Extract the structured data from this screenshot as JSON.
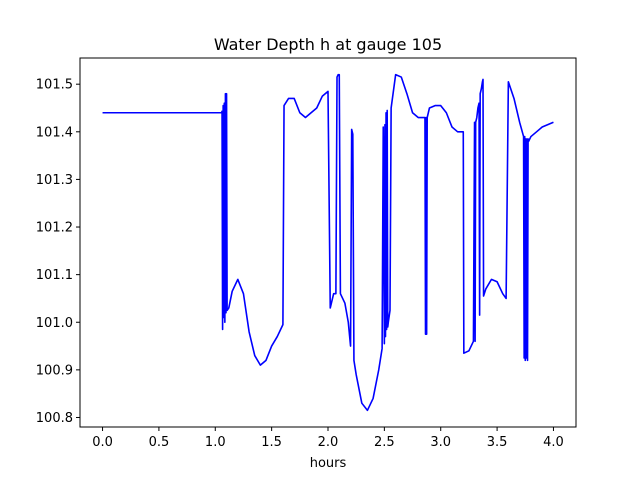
{
  "chart_data": {
    "type": "line",
    "title": "Water Depth h at gauge 105",
    "xlabel": "hours",
    "ylabel": "",
    "xlim": [
      -0.2,
      4.2
    ],
    "ylim": [
      100.78,
      101.555
    ],
    "x_ticks": [
      0.0,
      0.5,
      1.0,
      1.5,
      2.0,
      2.5,
      3.0,
      3.5,
      4.0
    ],
    "x_tick_labels": [
      "0.0",
      "0.5",
      "1.0",
      "1.5",
      "2.0",
      "2.5",
      "3.0",
      "3.5",
      "4.0"
    ],
    "y_ticks": [
      100.8,
      100.9,
      101.0,
      101.1,
      101.2,
      101.3,
      101.4,
      101.5
    ],
    "y_tick_labels": [
      "100.8",
      "100.9",
      "101.0",
      "101.1",
      "101.2",
      "101.3",
      "101.4",
      "101.5"
    ],
    "grid": false,
    "series": [
      {
        "color": "#0000ff",
        "x": [
          0.0,
          1.05,
          1.055,
          1.06,
          1.065,
          1.07,
          1.075,
          1.08,
          1.085,
          1.09,
          1.095,
          1.1,
          1.105,
          1.12,
          1.15,
          1.2,
          1.25,
          1.3,
          1.35,
          1.4,
          1.45,
          1.5,
          1.55,
          1.6,
          1.61,
          1.65,
          1.7,
          1.75,
          1.8,
          1.9,
          1.95,
          2.0,
          2.02,
          2.03,
          2.05,
          2.07,
          2.08,
          2.09,
          2.1,
          2.11,
          2.12,
          2.15,
          2.18,
          2.2,
          2.21,
          2.22,
          2.23,
          2.25,
          2.3,
          2.35,
          2.4,
          2.45,
          2.48,
          2.49,
          2.5,
          2.505,
          2.51,
          2.515,
          2.52,
          2.525,
          2.53,
          2.535,
          2.55,
          2.56,
          2.6,
          2.65,
          2.7,
          2.75,
          2.8,
          2.86,
          2.865,
          2.87,
          2.875,
          2.88,
          2.9,
          2.95,
          3.0,
          3.05,
          3.1,
          3.15,
          3.2,
          3.205,
          3.25,
          3.28,
          3.29,
          3.3,
          3.305,
          3.31,
          3.32,
          3.33,
          3.34,
          3.345,
          3.35,
          3.36,
          3.37,
          3.375,
          3.38,
          3.4,
          3.45,
          3.5,
          3.55,
          3.58,
          3.6,
          3.65,
          3.7,
          3.735,
          3.74,
          3.745,
          3.75,
          3.755,
          3.76,
          3.765,
          3.77,
          3.775,
          3.78,
          3.8,
          3.85,
          3.9,
          3.95,
          4.0
        ],
        "y": [
          101.44,
          101.44,
          101.44,
          101.443,
          100.985,
          101.455,
          101.01,
          101.46,
          101.0,
          101.48,
          101.02,
          101.48,
          101.025,
          101.03,
          101.065,
          101.09,
          101.06,
          100.98,
          100.93,
          100.91,
          100.92,
          100.95,
          100.97,
          100.995,
          101.455,
          101.47,
          101.47,
          101.44,
          101.43,
          101.45,
          101.475,
          101.485,
          101.03,
          101.04,
          101.06,
          101.06,
          101.515,
          101.52,
          101.52,
          101.06,
          101.055,
          101.04,
          101.0,
          100.95,
          101.405,
          101.395,
          100.92,
          100.89,
          100.83,
          100.815,
          100.84,
          100.9,
          100.945,
          101.41,
          100.955,
          101.415,
          100.97,
          101.44,
          100.985,
          101.445,
          100.99,
          101.0,
          101.025,
          101.45,
          101.52,
          101.515,
          101.48,
          101.44,
          101.43,
          101.43,
          100.975,
          101.43,
          100.975,
          101.43,
          101.45,
          101.455,
          101.455,
          101.44,
          101.41,
          101.4,
          101.4,
          100.935,
          100.94,
          100.955,
          100.96,
          101.42,
          100.96,
          101.42,
          101.43,
          101.45,
          101.46,
          101.015,
          101.48,
          101.49,
          101.505,
          101.51,
          101.055,
          101.07,
          101.09,
          101.085,
          101.06,
          101.05,
          101.505,
          101.47,
          101.42,
          101.39,
          100.925,
          101.39,
          100.92,
          101.385,
          100.925,
          101.385,
          100.92,
          101.385,
          101.38,
          101.39,
          101.4,
          101.41,
          101.415,
          101.42
        ]
      }
    ]
  }
}
